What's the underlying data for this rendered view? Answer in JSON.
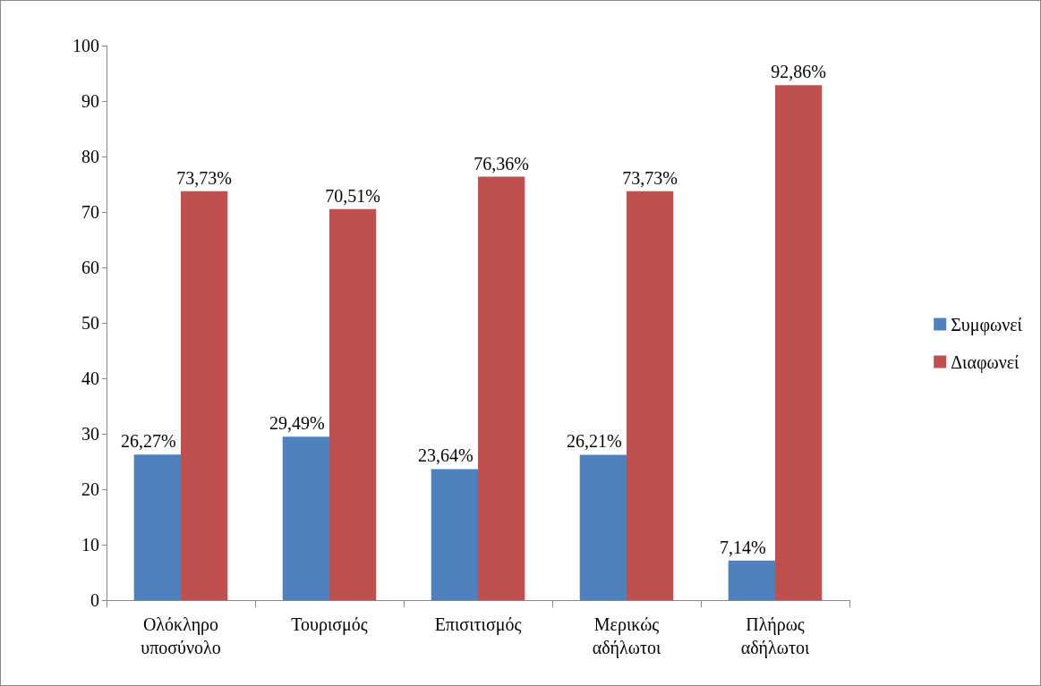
{
  "chart_data": {
    "type": "bar",
    "categories": [
      "Ολόκληρο υποσύνολο",
      "Τουρισμός",
      "Επισιτισμός",
      "Μερικώς αδήλωτοι",
      "Πλήρως αδήλωτοι"
    ],
    "series": [
      {
        "name": "Συμφωνεί",
        "color": "#4f81bd",
        "values": [
          26.27,
          29.49,
          23.64,
          26.21,
          7.14
        ],
        "value_labels": [
          "26,27%",
          "29,49%",
          "23,64%",
          "26,21%",
          "7,14%"
        ]
      },
      {
        "name": "Διαφωνεί",
        "color": "#c0504d",
        "values": [
          73.73,
          70.51,
          76.36,
          73.73,
          92.86
        ],
        "value_labels": [
          "73,73%",
          "70,51%",
          "76,36%",
          "73,73%",
          "92,86%"
        ]
      }
    ],
    "ylim": [
      0,
      100
    ],
    "yticks": [
      0,
      10,
      20,
      30,
      40,
      50,
      60,
      70,
      80,
      90,
      100
    ],
    "grid": false,
    "legend": "right"
  }
}
